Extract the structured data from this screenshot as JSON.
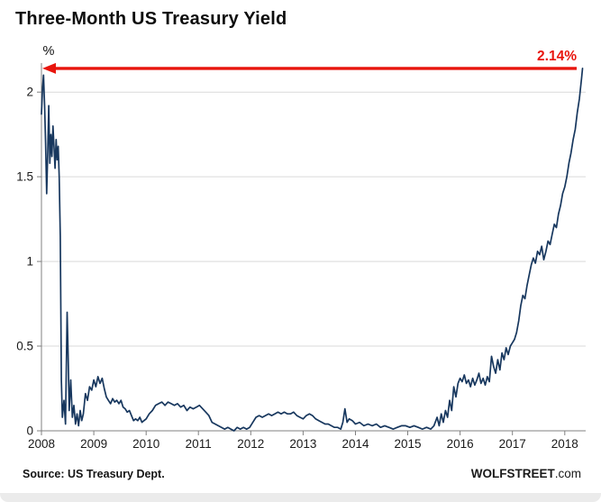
{
  "title": "Three-Month US Treasury Yield",
  "footer": {
    "source": "Source: US Treasury Dept.",
    "brand_bold": "WOLFSTREET",
    "brand_suffix": ".com"
  },
  "chart_data": {
    "type": "line",
    "title": "Three-Month US Treasury Yield",
    "xlabel": "",
    "ylabel": "%",
    "xlim": [
      2008,
      2018.4
    ],
    "ylim": [
      0,
      2.15
    ],
    "grid": "horizontal",
    "legend": "none",
    "yticks": [
      0,
      0.5,
      1,
      1.5,
      2
    ],
    "ytick_labels": [
      "0",
      "0.5",
      "1",
      "1.5",
      "2"
    ],
    "xticks": [
      2008,
      2009,
      2010,
      2011,
      2012,
      2013,
      2014,
      2015,
      2016,
      2017,
      2018
    ],
    "xtick_labels": [
      "2008",
      "2009",
      "2010",
      "2011",
      "2012",
      "2013",
      "2014",
      "2015",
      "2016",
      "2017",
      "2018"
    ],
    "annotation": {
      "label": "2.14%",
      "value": 2.14,
      "type": "arrow-left",
      "color": "#E8150D"
    },
    "style": {
      "line_color": "#17375E",
      "grid_color": "#D9D9D9",
      "axis_color": "#808080",
      "tick_label_color": "#1a1a1a"
    },
    "series": [
      {
        "name": "Three-month US Treasury yield (%)",
        "color": "#17375E",
        "points": [
          [
            2008.0,
            1.87
          ],
          [
            2008.02,
            2.02
          ],
          [
            2008.04,
            2.1
          ],
          [
            2008.06,
            1.92
          ],
          [
            2008.08,
            1.7
          ],
          [
            2008.1,
            1.4
          ],
          [
            2008.12,
            1.65
          ],
          [
            2008.14,
            1.92
          ],
          [
            2008.16,
            1.58
          ],
          [
            2008.18,
            1.75
          ],
          [
            2008.2,
            1.62
          ],
          [
            2008.22,
            1.8
          ],
          [
            2008.24,
            1.68
          ],
          [
            2008.26,
            1.55
          ],
          [
            2008.28,
            1.72
          ],
          [
            2008.3,
            1.6
          ],
          [
            2008.32,
            1.68
          ],
          [
            2008.34,
            1.5
          ],
          [
            2008.36,
            1.15
          ],
          [
            2008.38,
            0.3
          ],
          [
            2008.4,
            0.08
          ],
          [
            2008.43,
            0.18
          ],
          [
            2008.46,
            0.04
          ],
          [
            2008.49,
            0.7
          ],
          [
            2008.51,
            0.45
          ],
          [
            2008.53,
            0.12
          ],
          [
            2008.56,
            0.3
          ],
          [
            2008.59,
            0.08
          ],
          [
            2008.62,
            0.15
          ],
          [
            2008.65,
            0.04
          ],
          [
            2008.68,
            0.1
          ],
          [
            2008.71,
            0.03
          ],
          [
            2008.74,
            0.12
          ],
          [
            2008.77,
            0.06
          ],
          [
            2008.8,
            0.1
          ],
          [
            2008.84,
            0.22
          ],
          [
            2008.88,
            0.18
          ],
          [
            2008.92,
            0.26
          ],
          [
            2008.96,
            0.24
          ],
          [
            2009.0,
            0.3
          ],
          [
            2009.04,
            0.26
          ],
          [
            2009.08,
            0.32
          ],
          [
            2009.12,
            0.28
          ],
          [
            2009.16,
            0.31
          ],
          [
            2009.2,
            0.25
          ],
          [
            2009.24,
            0.2
          ],
          [
            2009.28,
            0.18
          ],
          [
            2009.32,
            0.16
          ],
          [
            2009.36,
            0.19
          ],
          [
            2009.4,
            0.17
          ],
          [
            2009.44,
            0.18
          ],
          [
            2009.48,
            0.16
          ],
          [
            2009.52,
            0.18
          ],
          [
            2009.56,
            0.14
          ],
          [
            2009.6,
            0.13
          ],
          [
            2009.64,
            0.11
          ],
          [
            2009.68,
            0.12
          ],
          [
            2009.72,
            0.09
          ],
          [
            2009.76,
            0.06
          ],
          [
            2009.8,
            0.07
          ],
          [
            2009.84,
            0.06
          ],
          [
            2009.88,
            0.08
          ],
          [
            2009.92,
            0.05
          ],
          [
            2009.96,
            0.06
          ],
          [
            2010.0,
            0.07
          ],
          [
            2010.06,
            0.1
          ],
          [
            2010.12,
            0.12
          ],
          [
            2010.18,
            0.15
          ],
          [
            2010.24,
            0.16
          ],
          [
            2010.3,
            0.17
          ],
          [
            2010.36,
            0.15
          ],
          [
            2010.42,
            0.17
          ],
          [
            2010.48,
            0.16
          ],
          [
            2010.54,
            0.15
          ],
          [
            2010.6,
            0.16
          ],
          [
            2010.66,
            0.14
          ],
          [
            2010.72,
            0.15
          ],
          [
            2010.78,
            0.12
          ],
          [
            2010.84,
            0.14
          ],
          [
            2010.9,
            0.13
          ],
          [
            2010.96,
            0.14
          ],
          [
            2011.02,
            0.15
          ],
          [
            2011.08,
            0.13
          ],
          [
            2011.14,
            0.11
          ],
          [
            2011.2,
            0.09
          ],
          [
            2011.26,
            0.05
          ],
          [
            2011.32,
            0.04
          ],
          [
            2011.38,
            0.03
          ],
          [
            2011.44,
            0.02
          ],
          [
            2011.5,
            0.01
          ],
          [
            2011.56,
            0.02
          ],
          [
            2011.62,
            0.01
          ],
          [
            2011.68,
            0.0
          ],
          [
            2011.74,
            0.02
          ],
          [
            2011.8,
            0.01
          ],
          [
            2011.86,
            0.02
          ],
          [
            2011.92,
            0.01
          ],
          [
            2011.98,
            0.02
          ],
          [
            2012.04,
            0.05
          ],
          [
            2012.1,
            0.08
          ],
          [
            2012.16,
            0.09
          ],
          [
            2012.22,
            0.08
          ],
          [
            2012.28,
            0.09
          ],
          [
            2012.34,
            0.1
          ],
          [
            2012.4,
            0.09
          ],
          [
            2012.46,
            0.1
          ],
          [
            2012.52,
            0.11
          ],
          [
            2012.58,
            0.1
          ],
          [
            2012.64,
            0.11
          ],
          [
            2012.7,
            0.1
          ],
          [
            2012.76,
            0.1
          ],
          [
            2012.82,
            0.11
          ],
          [
            2012.88,
            0.09
          ],
          [
            2012.94,
            0.08
          ],
          [
            2013.0,
            0.07
          ],
          [
            2013.06,
            0.09
          ],
          [
            2013.12,
            0.1
          ],
          [
            2013.18,
            0.09
          ],
          [
            2013.24,
            0.07
          ],
          [
            2013.3,
            0.06
          ],
          [
            2013.36,
            0.05
          ],
          [
            2013.42,
            0.04
          ],
          [
            2013.48,
            0.04
          ],
          [
            2013.54,
            0.03
          ],
          [
            2013.6,
            0.02
          ],
          [
            2013.66,
            0.02
          ],
          [
            2013.72,
            0.01
          ],
          [
            2013.76,
            0.05
          ],
          [
            2013.8,
            0.13
          ],
          [
            2013.84,
            0.05
          ],
          [
            2013.88,
            0.07
          ],
          [
            2013.94,
            0.06
          ],
          [
            2014.0,
            0.04
          ],
          [
            2014.08,
            0.05
          ],
          [
            2014.16,
            0.03
          ],
          [
            2014.24,
            0.04
          ],
          [
            2014.32,
            0.03
          ],
          [
            2014.4,
            0.04
          ],
          [
            2014.48,
            0.02
          ],
          [
            2014.56,
            0.03
          ],
          [
            2014.64,
            0.02
          ],
          [
            2014.72,
            0.01
          ],
          [
            2014.8,
            0.02
          ],
          [
            2014.88,
            0.03
          ],
          [
            2014.96,
            0.03
          ],
          [
            2015.04,
            0.02
          ],
          [
            2015.12,
            0.03
          ],
          [
            2015.2,
            0.02
          ],
          [
            2015.28,
            0.01
          ],
          [
            2015.36,
            0.02
          ],
          [
            2015.44,
            0.01
          ],
          [
            2015.5,
            0.03
          ],
          [
            2015.56,
            0.08
          ],
          [
            2015.6,
            0.03
          ],
          [
            2015.64,
            0.1
          ],
          [
            2015.68,
            0.05
          ],
          [
            2015.72,
            0.12
          ],
          [
            2015.76,
            0.08
          ],
          [
            2015.8,
            0.18
          ],
          [
            2015.84,
            0.12
          ],
          [
            2015.88,
            0.26
          ],
          [
            2015.92,
            0.2
          ],
          [
            2015.96,
            0.28
          ],
          [
            2016.0,
            0.31
          ],
          [
            2016.04,
            0.29
          ],
          [
            2016.08,
            0.33
          ],
          [
            2016.12,
            0.28
          ],
          [
            2016.16,
            0.3
          ],
          [
            2016.2,
            0.26
          ],
          [
            2016.24,
            0.31
          ],
          [
            2016.28,
            0.27
          ],
          [
            2016.32,
            0.3
          ],
          [
            2016.36,
            0.34
          ],
          [
            2016.4,
            0.28
          ],
          [
            2016.44,
            0.31
          ],
          [
            2016.48,
            0.27
          ],
          [
            2016.52,
            0.32
          ],
          [
            2016.56,
            0.29
          ],
          [
            2016.6,
            0.44
          ],
          [
            2016.64,
            0.38
          ],
          [
            2016.68,
            0.34
          ],
          [
            2016.72,
            0.42
          ],
          [
            2016.76,
            0.36
          ],
          [
            2016.8,
            0.46
          ],
          [
            2016.84,
            0.42
          ],
          [
            2016.88,
            0.49
          ],
          [
            2016.92,
            0.45
          ],
          [
            2016.96,
            0.5
          ],
          [
            2017.0,
            0.52
          ],
          [
            2017.04,
            0.54
          ],
          [
            2017.08,
            0.58
          ],
          [
            2017.12,
            0.65
          ],
          [
            2017.16,
            0.74
          ],
          [
            2017.2,
            0.8
          ],
          [
            2017.24,
            0.78
          ],
          [
            2017.28,
            0.86
          ],
          [
            2017.32,
            0.92
          ],
          [
            2017.36,
            0.98
          ],
          [
            2017.4,
            1.02
          ],
          [
            2017.44,
            0.99
          ],
          [
            2017.48,
            1.06
          ],
          [
            2017.52,
            1.04
          ],
          [
            2017.56,
            1.09
          ],
          [
            2017.6,
            1.01
          ],
          [
            2017.64,
            1.06
          ],
          [
            2017.68,
            1.12
          ],
          [
            2017.72,
            1.1
          ],
          [
            2017.76,
            1.16
          ],
          [
            2017.8,
            1.22
          ],
          [
            2017.84,
            1.2
          ],
          [
            2017.88,
            1.28
          ],
          [
            2017.92,
            1.33
          ],
          [
            2017.96,
            1.4
          ],
          [
            2018.0,
            1.44
          ],
          [
            2018.04,
            1.5
          ],
          [
            2018.08,
            1.58
          ],
          [
            2018.12,
            1.64
          ],
          [
            2018.16,
            1.72
          ],
          [
            2018.2,
            1.78
          ],
          [
            2018.24,
            1.88
          ],
          [
            2018.28,
            1.96
          ],
          [
            2018.3,
            2.02
          ],
          [
            2018.32,
            2.08
          ],
          [
            2018.34,
            2.14
          ]
        ]
      }
    ]
  }
}
